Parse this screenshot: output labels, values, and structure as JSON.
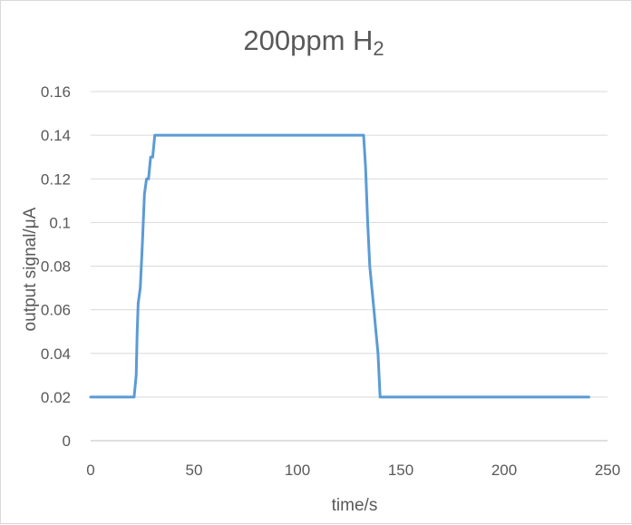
{
  "chart_data": {
    "type": "line",
    "title": "200ppm H",
    "title_subscript": "2",
    "xlabel": "time/s",
    "ylabel": "output signal/μA",
    "xlim": [
      0,
      250
    ],
    "ylim": [
      0,
      0.16
    ],
    "x_ticks": [
      "0",
      "50",
      "100",
      "150",
      "200",
      "250"
    ],
    "y_ticks": [
      "0",
      "0.02",
      "0.04",
      "0.06",
      "0.08",
      "0.1",
      "0.12",
      "0.14",
      "0.16"
    ],
    "grid": "horizontal",
    "legend": "none",
    "series": [
      {
        "color": "#5b9bd5",
        "x": [
          0,
          21,
          22,
          22.5,
          23,
          24,
          25,
          26,
          27,
          28,
          29,
          30,
          31,
          32,
          132,
          133,
          134,
          135,
          136,
          137,
          138,
          139,
          140,
          141,
          241
        ],
        "y": [
          0.02,
          0.02,
          0.03,
          0.05,
          0.063,
          0.07,
          0.09,
          0.113,
          0.12,
          0.12,
          0.13,
          0.13,
          0.14,
          0.14,
          0.14,
          0.125,
          0.1,
          0.08,
          0.07,
          0.06,
          0.05,
          0.04,
          0.02,
          0.02,
          0.02
        ]
      }
    ]
  }
}
